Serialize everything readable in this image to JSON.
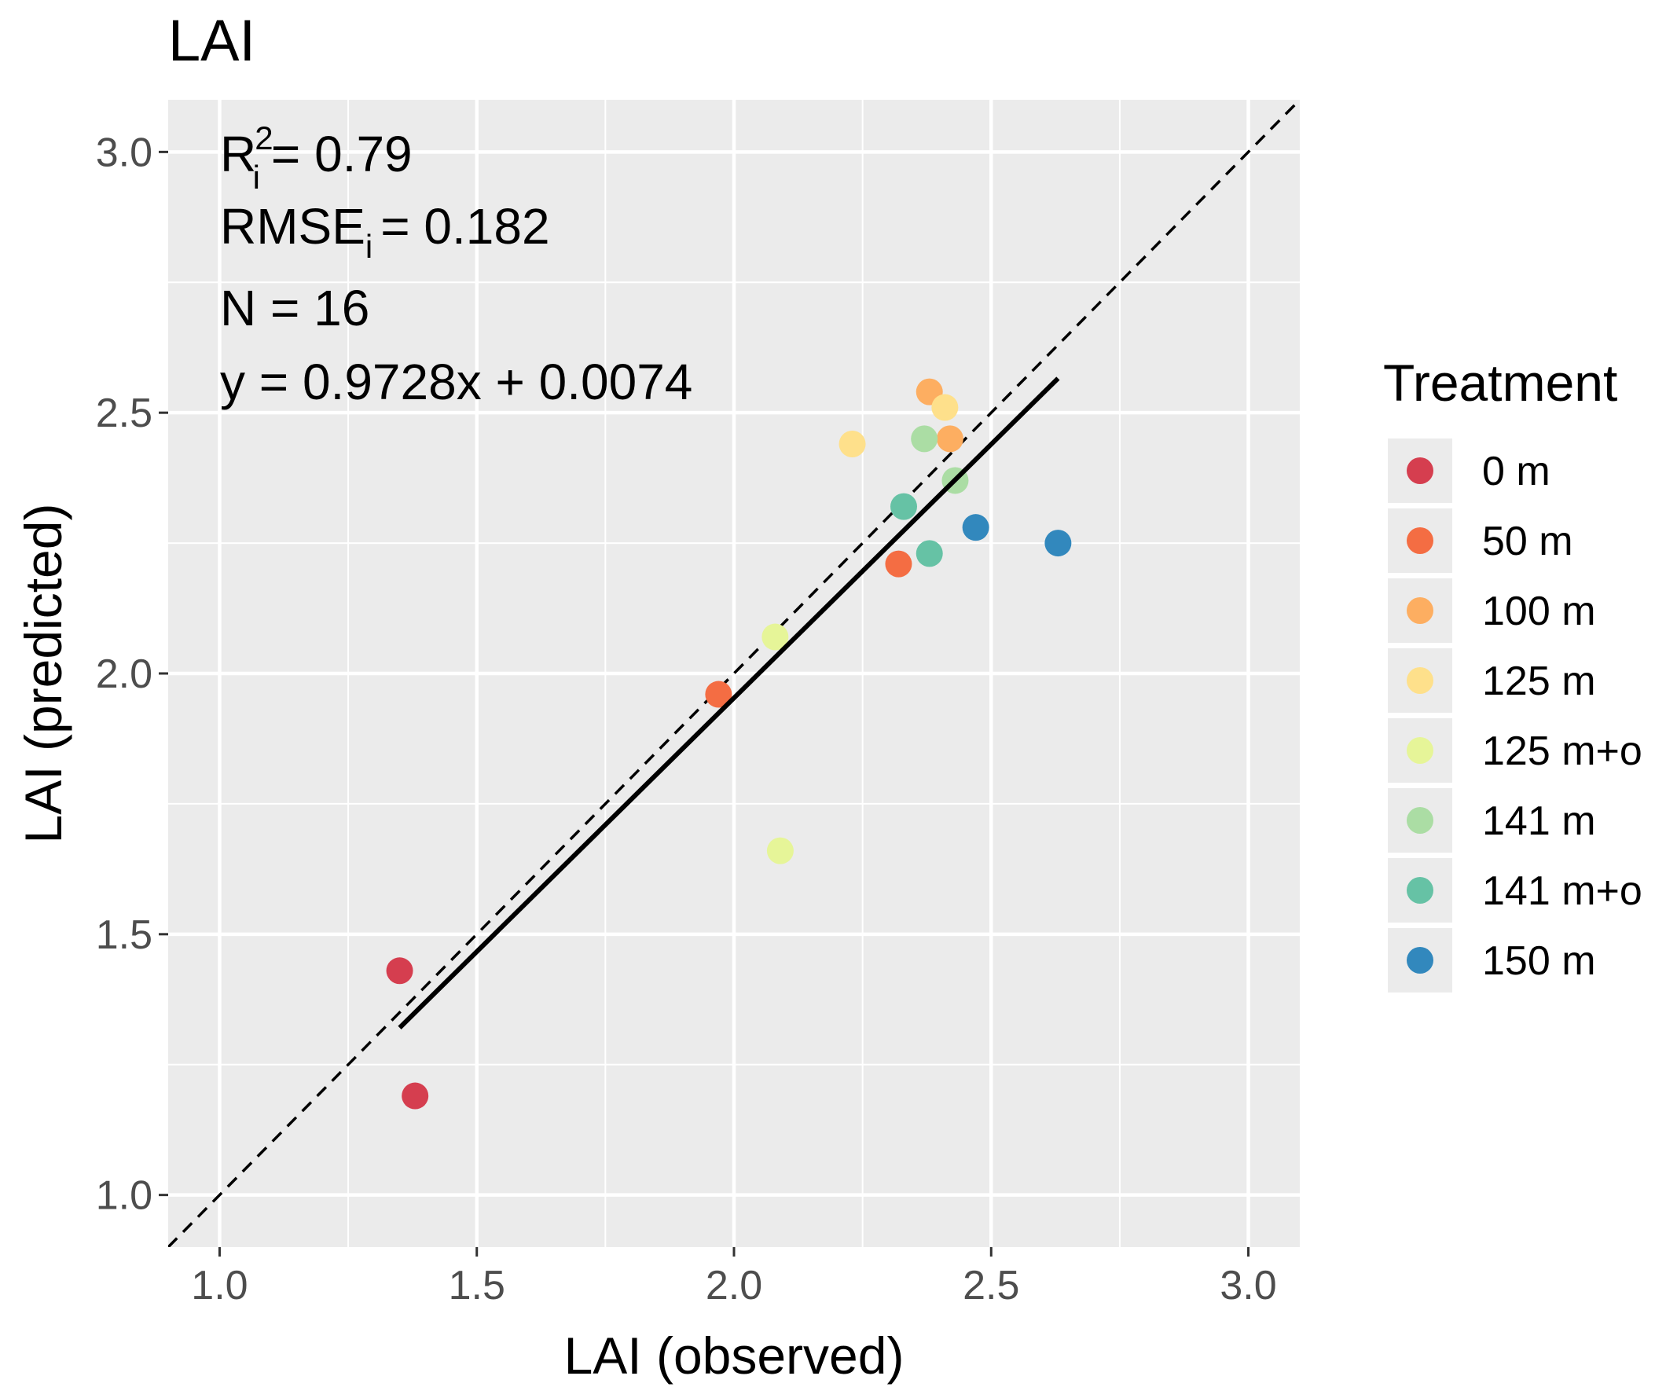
{
  "chart_data": {
    "type": "scatter",
    "title": "LAI",
    "xlabel": "LAI (observed)",
    "ylabel": "LAI (predicted)",
    "xlim": [
      0.9,
      3.1
    ],
    "ylim": [
      0.9,
      3.1
    ],
    "x_ticks": [
      1.0,
      1.5,
      2.0,
      2.5,
      3.0
    ],
    "x_tick_labels": [
      "1.0",
      "1.5",
      "2.0",
      "2.5",
      "3.0"
    ],
    "y_ticks": [
      1.0,
      1.5,
      2.0,
      2.5,
      3.0
    ],
    "y_tick_labels": [
      "1.0",
      "1.5",
      "2.0",
      "2.5",
      "3.0"
    ],
    "minor_gridlines": [
      1.25,
      1.75,
      2.25,
      2.75
    ],
    "grid": true,
    "legend_title": "Treatment",
    "legend_position": "right",
    "series": [
      {
        "name": "0 m",
        "color": "#d53e4f",
        "points": [
          [
            1.35,
            1.43
          ],
          [
            1.38,
            1.19
          ]
        ]
      },
      {
        "name": "50 m",
        "color": "#f46d43",
        "points": [
          [
            1.97,
            1.96
          ],
          [
            2.32,
            2.21
          ]
        ]
      },
      {
        "name": "100 m",
        "color": "#fdae61",
        "points": [
          [
            2.38,
            2.54
          ],
          [
            2.42,
            2.45
          ]
        ]
      },
      {
        "name": "125 m",
        "color": "#fee08b",
        "points": [
          [
            2.23,
            2.44
          ],
          [
            2.41,
            2.51
          ]
        ]
      },
      {
        "name": "125 m+o",
        "color": "#e6f598",
        "points": [
          [
            2.08,
            2.07
          ],
          [
            2.09,
            1.66
          ]
        ]
      },
      {
        "name": "141 m",
        "color": "#abdda4",
        "points": [
          [
            2.37,
            2.45
          ],
          [
            2.43,
            2.37
          ]
        ]
      },
      {
        "name": "141 m+o",
        "color": "#66c2a5",
        "points": [
          [
            2.33,
            2.32
          ],
          [
            2.38,
            2.23
          ]
        ]
      },
      {
        "name": "150 m",
        "color": "#3288bd",
        "points": [
          [
            2.47,
            2.28
          ],
          [
            2.63,
            2.25
          ]
        ]
      }
    ],
    "reference_line": {
      "style": "dashed",
      "slope": 1,
      "intercept": 0
    },
    "fit_line": {
      "slope": 0.9728,
      "intercept": 0.0074,
      "x_range": [
        1.35,
        2.63
      ]
    },
    "annotations": {
      "r2": {
        "label": "R",
        "superscript": "2",
        "subscript": "i",
        "value": "= 0.79"
      },
      "rmse": {
        "label": "RMSE",
        "subscript": "i",
        "value": "= 0.182"
      },
      "n": "N = 16",
      "equation": "y = 0.9728x + 0.0074"
    }
  }
}
